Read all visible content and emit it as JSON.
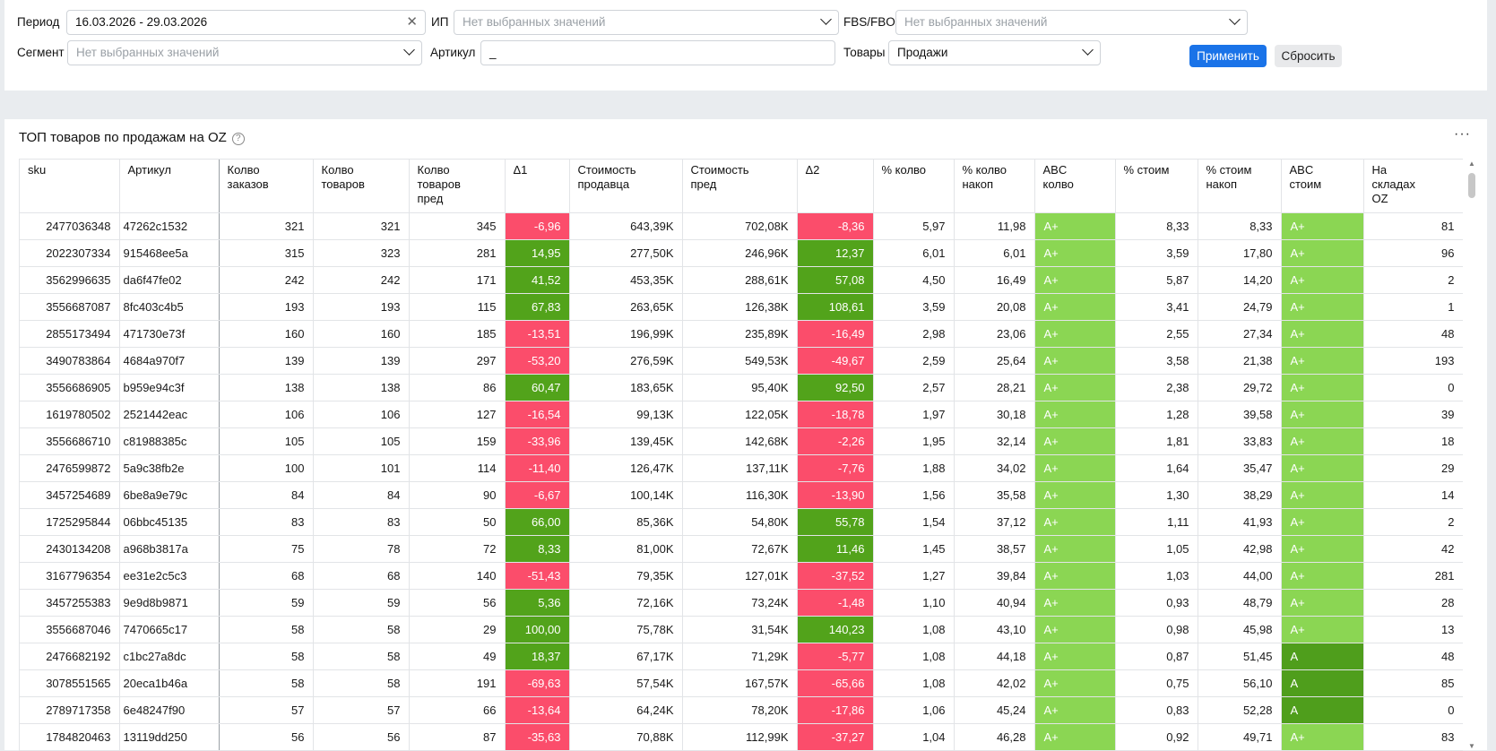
{
  "filters": {
    "period_label": "Период",
    "period_value": "16.03.2026 - 29.03.2026",
    "ip_label": "ИП",
    "ip_placeholder": "Нет выбранных значений",
    "fbs_label": "FBS/FBO",
    "fbs_placeholder": "Нет выбранных значений",
    "segment_label": "Сегмент",
    "segment_placeholder": "Нет выбранных значений",
    "article_label": "Артикул",
    "article_value": "_",
    "goods_label": "Товары",
    "goods_value": "Продажи",
    "apply_label": "Применить",
    "reset_label": "Сбросить"
  },
  "panel": {
    "title": "ТОП товаров по продажам на OZ",
    "help_glyph": "?",
    "menu_glyph": "···"
  },
  "table": {
    "columns": [
      "sku",
      "Артикул",
      "Колво\nзаказов",
      "Колво\nтоваров",
      "Колво\nтоваров\nпред",
      "Δ1",
      "Стоимость\nпродавца",
      "Стоимость\nпред",
      "Δ2",
      "% колво",
      "% колво\nнакоп",
      "ABC\nколво",
      "% стоим",
      "% стоим\nнакоп",
      "ABC\nстоим",
      "На\nскладах\nOZ"
    ],
    "rows": [
      [
        "2477036348",
        "47262c1532",
        "321",
        "321",
        "345",
        "-6,96",
        "643,39K",
        "702,08K",
        "-8,36",
        "5,97",
        "11,98",
        "A+",
        "8,33",
        "8,33",
        "A+",
        "81"
      ],
      [
        "2022307334",
        "915468ee5a",
        "315",
        "323",
        "281",
        "14,95",
        "277,50K",
        "246,96K",
        "12,37",
        "6,01",
        "6,01",
        "A+",
        "3,59",
        "17,80",
        "A+",
        "96"
      ],
      [
        "3562996635",
        "da6f47fe02",
        "242",
        "242",
        "171",
        "41,52",
        "453,35K",
        "288,61K",
        "57,08",
        "4,50",
        "16,49",
        "A+",
        "5,87",
        "14,20",
        "A+",
        "2"
      ],
      [
        "3556687087",
        "8fc403c4b5",
        "193",
        "193",
        "115",
        "67,83",
        "263,65K",
        "126,38K",
        "108,61",
        "3,59",
        "20,08",
        "A+",
        "3,41",
        "24,79",
        "A+",
        "1"
      ],
      [
        "2855173494",
        "471730e73f",
        "160",
        "160",
        "185",
        "-13,51",
        "196,99K",
        "235,89K",
        "-16,49",
        "2,98",
        "23,06",
        "A+",
        "2,55",
        "27,34",
        "A+",
        "48"
      ],
      [
        "3490783864",
        "4684a970f7",
        "139",
        "139",
        "297",
        "-53,20",
        "276,59K",
        "549,53K",
        "-49,67",
        "2,59",
        "25,64",
        "A+",
        "3,58",
        "21,38",
        "A+",
        "193"
      ],
      [
        "3556686905",
        "b959e94c3f",
        "138",
        "138",
        "86",
        "60,47",
        "183,65K",
        "95,40K",
        "92,50",
        "2,57",
        "28,21",
        "A+",
        "2,38",
        "29,72",
        "A+",
        "0"
      ],
      [
        "1619780502",
        "2521442eac",
        "106",
        "106",
        "127",
        "-16,54",
        "99,13K",
        "122,05K",
        "-18,78",
        "1,97",
        "30,18",
        "A+",
        "1,28",
        "39,58",
        "A+",
        "39"
      ],
      [
        "3556686710",
        "c81988385c",
        "105",
        "105",
        "159",
        "-33,96",
        "139,45K",
        "142,68K",
        "-2,26",
        "1,95",
        "32,14",
        "A+",
        "1,81",
        "33,83",
        "A+",
        "18"
      ],
      [
        "2476599872",
        "5a9c38fb2e",
        "100",
        "101",
        "114",
        "-11,40",
        "126,47K",
        "137,11K",
        "-7,76",
        "1,88",
        "34,02",
        "A+",
        "1,64",
        "35,47",
        "A+",
        "29"
      ],
      [
        "3457254689",
        "6be8a9e79c",
        "84",
        "84",
        "90",
        "-6,67",
        "100,14K",
        "116,30K",
        "-13,90",
        "1,56",
        "35,58",
        "A+",
        "1,30",
        "38,29",
        "A+",
        "14"
      ],
      [
        "1725295844",
        "06bbc45135",
        "83",
        "83",
        "50",
        "66,00",
        "85,36K",
        "54,80K",
        "55,78",
        "1,54",
        "37,12",
        "A+",
        "1,11",
        "41,93",
        "A+",
        "2"
      ],
      [
        "2430134208",
        "a968b3817a",
        "75",
        "78",
        "72",
        "8,33",
        "81,00K",
        "72,67K",
        "11,46",
        "1,45",
        "38,57",
        "A+",
        "1,05",
        "42,98",
        "A+",
        "42"
      ],
      [
        "3167796354",
        "ee31e2c5c3",
        "68",
        "68",
        "140",
        "-51,43",
        "79,35K",
        "127,01K",
        "-37,52",
        "1,27",
        "39,84",
        "A+",
        "1,03",
        "44,00",
        "A+",
        "281"
      ],
      [
        "3457255383",
        "9e9d8b9871",
        "59",
        "59",
        "56",
        "5,36",
        "72,16K",
        "73,24K",
        "-1,48",
        "1,10",
        "40,94",
        "A+",
        "0,93",
        "48,79",
        "A+",
        "28"
      ],
      [
        "3556687046",
        "7470665c17",
        "58",
        "58",
        "29",
        "100,00",
        "75,78K",
        "31,54K",
        "140,23",
        "1,08",
        "43,10",
        "A+",
        "0,98",
        "45,98",
        "A+",
        "13"
      ],
      [
        "2476682192",
        "c1bc27a8dc",
        "58",
        "58",
        "49",
        "18,37",
        "67,17K",
        "71,29K",
        "-5,77",
        "1,08",
        "44,18",
        "A+",
        "0,87",
        "51,45",
        "A",
        "48"
      ],
      [
        "3078551565",
        "20eca1b46a",
        "58",
        "58",
        "191",
        "-69,63",
        "57,54K",
        "167,57K",
        "-65,66",
        "1,08",
        "42,02",
        "A+",
        "0,75",
        "56,10",
        "A",
        "85"
      ],
      [
        "2789717358",
        "6e48247f90",
        "57",
        "57",
        "66",
        "-13,64",
        "64,24K",
        "78,20K",
        "-17,86",
        "1,06",
        "45,24",
        "A+",
        "0,83",
        "52,28",
        "A",
        "0"
      ],
      [
        "1784820463",
        "13119dd250",
        "56",
        "56",
        "87",
        "-35,63",
        "70,88K",
        "112,99K",
        "-37,27",
        "1,04",
        "46,28",
        "A+",
        "0,92",
        "49,71",
        "A+",
        "83"
      ]
    ]
  },
  "colors": {
    "negative": "#fb4d6b",
    "positive": "#52a31b",
    "abc_a_plus": "#8bd653",
    "abc_a": "#4f9e1c",
    "apply_button": "#1a73e8"
  }
}
